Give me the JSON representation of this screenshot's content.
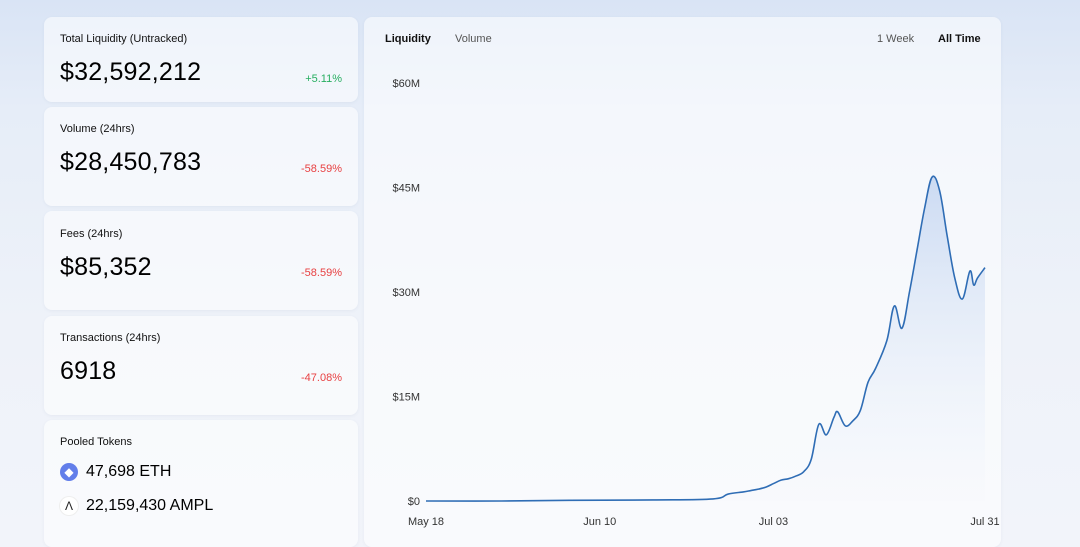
{
  "stats": [
    {
      "label": "Total Liquidity (Untracked)",
      "value": "$32,592,212",
      "change": "+5.11%",
      "direction": "up"
    },
    {
      "label": "Volume (24hrs)",
      "value": "$28,450,783",
      "change": "-58.59%",
      "direction": "down"
    },
    {
      "label": "Fees (24hrs)",
      "value": "$85,352",
      "change": "-58.59%",
      "direction": "down"
    },
    {
      "label": "Transactions (24hrs)",
      "value": "6918",
      "change": "-47.08%",
      "direction": "down"
    }
  ],
  "pooled": {
    "label": "Pooled Tokens",
    "tokens": [
      {
        "amount": "47,698 ETH",
        "icon": "ethereum-icon",
        "glyph": "◆"
      },
      {
        "amount": "22,159,430 AMPL",
        "icon": "ampleforth-icon",
        "glyph": "Λ"
      }
    ]
  },
  "chart_tabs": {
    "metric": [
      {
        "label": "Liquidity",
        "active": true
      },
      {
        "label": "Volume",
        "active": false
      }
    ],
    "range": [
      {
        "label": "1 Week",
        "active": false
      },
      {
        "label": "All Time",
        "active": true
      }
    ]
  },
  "colors": {
    "line": "#2f6db5",
    "fill_top": "#c9d9f2",
    "up": "#27ae60",
    "down": "#e84142"
  },
  "chart_data": {
    "type": "area",
    "ylabel": "",
    "xlabel": "",
    "ylim": [
      0,
      60000000
    ],
    "yticks": [
      "$0",
      "$15M",
      "$30M",
      "$45M",
      "$60M"
    ],
    "ytick_values": [
      0,
      15000000,
      30000000,
      45000000,
      60000000
    ],
    "xticks": [
      "May 18",
      "Jun 10",
      "Jul 03",
      "Jul 31"
    ],
    "xtick_days": [
      0,
      23,
      46,
      74
    ],
    "x": [
      0,
      10,
      19,
      30,
      38,
      40,
      42,
      43,
      44,
      45,
      46,
      47,
      48,
      49,
      50,
      51,
      52,
      53,
      54,
      54.5,
      55.5,
      56.5,
      57.5,
      58.5,
      59.5,
      61,
      62,
      63,
      64,
      65,
      66,
      67,
      68,
      69,
      70,
      71,
      72,
      72.5,
      73,
      74
    ],
    "y": [
      0,
      0,
      100000,
      150000,
      300000,
      1000000,
      1300000,
      1500000,
      1700000,
      2000000,
      2500000,
      3000000,
      3200000,
      3600000,
      4200000,
      6000000,
      11000000,
      9500000,
      12000000,
      12800000,
      10800000,
      11500000,
      13000000,
      17000000,
      19000000,
      23000000,
      28000000,
      24800000,
      30000000,
      36000000,
      42000000,
      46500000,
      44500000,
      38000000,
      32000000,
      29000000,
      33000000,
      31000000,
      32000000,
      33500000
    ]
  }
}
